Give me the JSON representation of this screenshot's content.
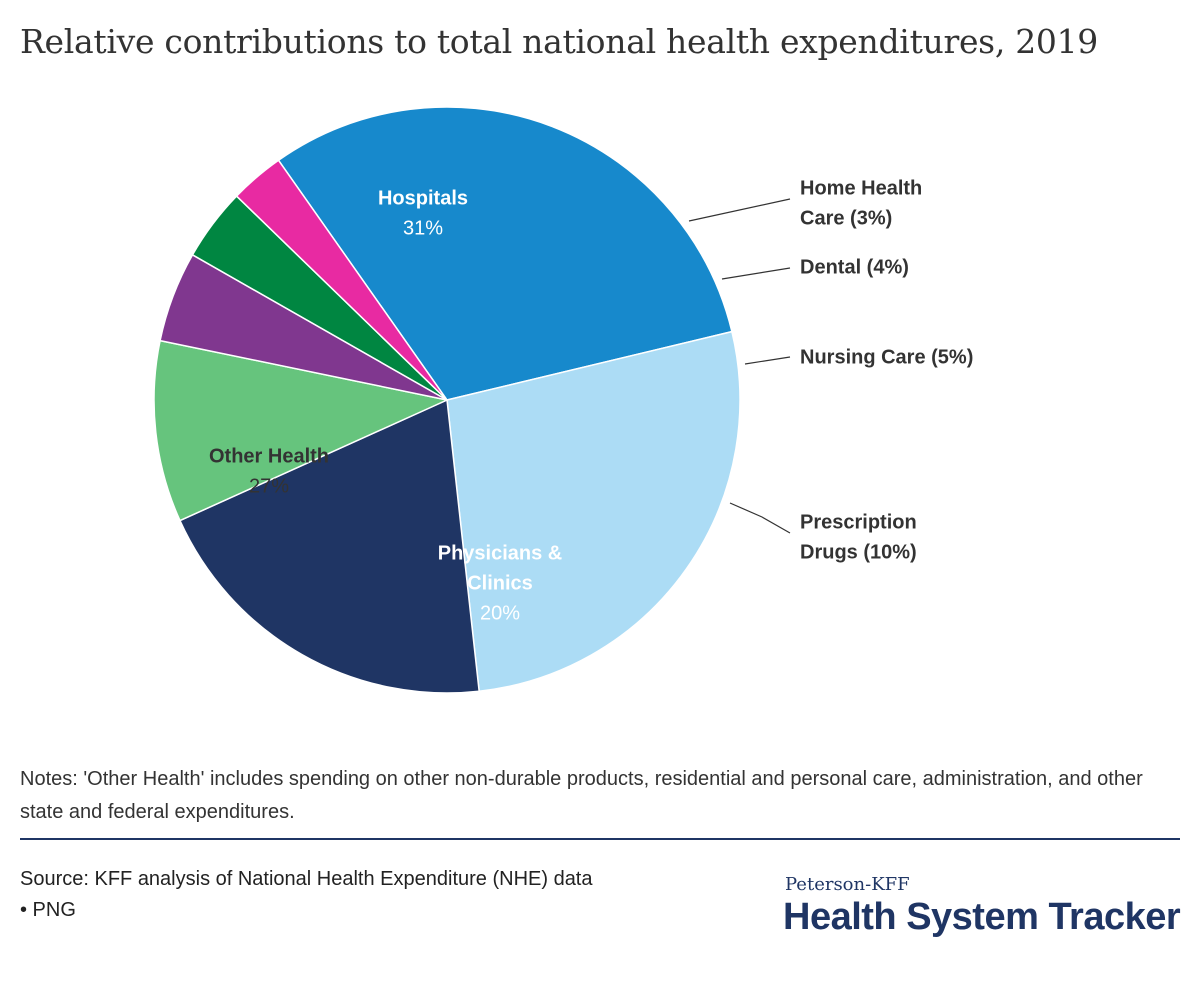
{
  "chart_data": {
    "type": "pie",
    "title": "Relative contributions to total national health expenditures, 2019",
    "slices": [
      {
        "name": "Hospitals",
        "value": 31,
        "label_lines": [
          "Hospitals"
        ],
        "value_label": "31%",
        "color": "#1789cc",
        "label_color": "#ffffff",
        "label_position": "inside"
      },
      {
        "name": "Other Health",
        "value": 27,
        "label_lines": [
          "Other Health"
        ],
        "value_label": "27%",
        "color": "#acdcf5",
        "label_color": "#333333",
        "label_position": "inside"
      },
      {
        "name": "Physicians & Clinics",
        "value": 20,
        "label_lines": [
          "Physicians &",
          "Clinics"
        ],
        "value_label": "20%",
        "color": "#1f3564",
        "label_color": "#ffffff",
        "label_position": "inside"
      },
      {
        "name": "Prescription Drugs",
        "value": 10,
        "label_lines": [
          "Prescription",
          "Drugs (10%)"
        ],
        "color": "#66c47d",
        "label_color": "#333333",
        "label_position": "outside"
      },
      {
        "name": "Nursing Care",
        "value": 5,
        "label_lines": [
          "Nursing Care (5%)"
        ],
        "color": "#80378f",
        "label_color": "#333333",
        "label_position": "outside"
      },
      {
        "name": "Dental",
        "value": 4,
        "label_lines": [
          "Dental (4%)"
        ],
        "color": "#008641",
        "label_color": "#333333",
        "label_position": "outside"
      },
      {
        "name": "Home Health Care",
        "value": 3,
        "label_lines": [
          "Home Health",
          "Care (3%)"
        ],
        "color": "#e82aa2",
        "label_color": "#333333",
        "label_position": "outside"
      }
    ]
  },
  "notes": "Notes: 'Other Health' includes spending on other non-durable products, residential and personal care, administration, and other state and federal expenditures.",
  "source": "Source: KFF analysis of National Health Expenditure (NHE) data",
  "format_link": "• PNG",
  "logo": {
    "top": "Peterson-KFF",
    "main": "Health System Tracker"
  }
}
